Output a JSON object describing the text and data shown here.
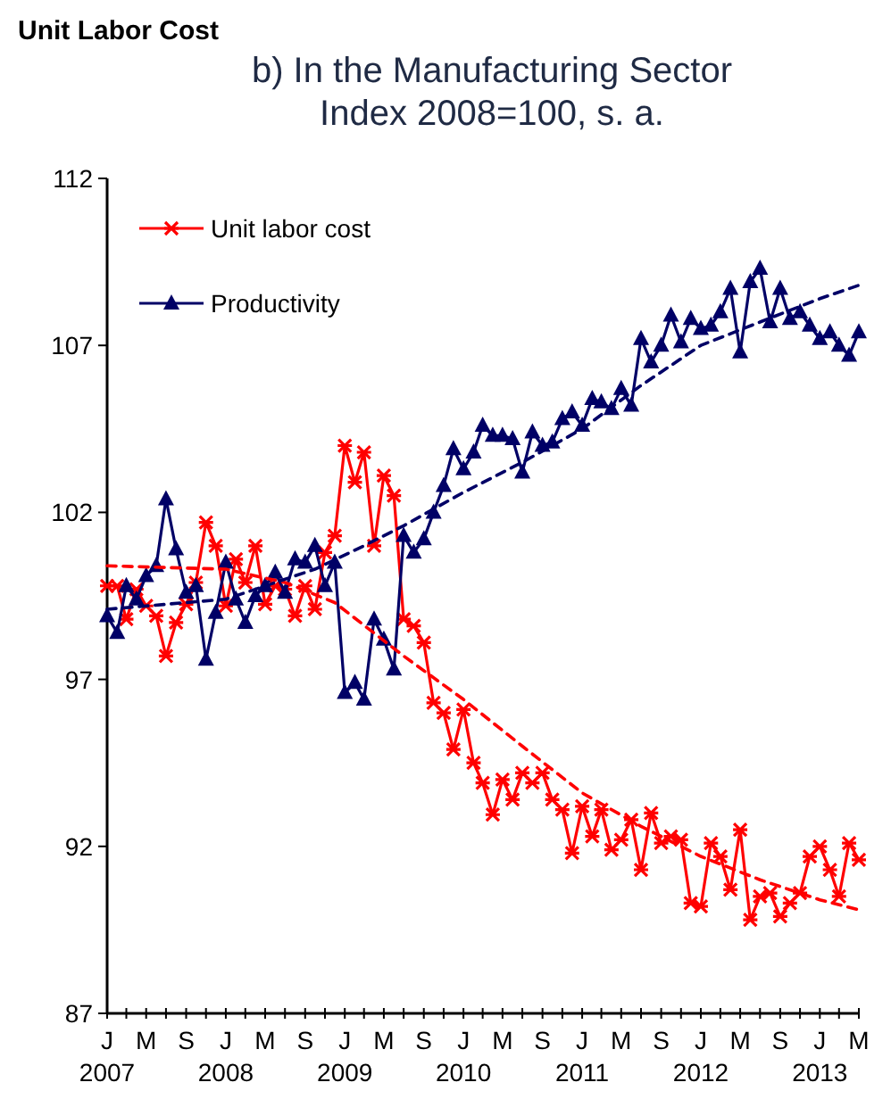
{
  "chart_data": {
    "type": "line",
    "title": "Unit Labor Cost",
    "subtitle": "b) In the Manufacturing Sector\nIndex 2008=100, s. a.",
    "xlim": [
      "2007-01",
      "2013-05"
    ],
    "x": [
      "2007-01",
      "2007-02",
      "2007-03",
      "2007-04",
      "2007-05",
      "2007-06",
      "2007-07",
      "2007-08",
      "2007-09",
      "2007-10",
      "2007-11",
      "2007-12",
      "2008-01",
      "2008-02",
      "2008-03",
      "2008-04",
      "2008-05",
      "2008-06",
      "2008-07",
      "2008-08",
      "2008-09",
      "2008-10",
      "2008-11",
      "2008-12",
      "2009-01",
      "2009-02",
      "2009-03",
      "2009-04",
      "2009-05",
      "2009-06",
      "2009-07",
      "2009-08",
      "2009-09",
      "2009-10",
      "2009-11",
      "2009-12",
      "2010-01",
      "2010-02",
      "2010-03",
      "2010-04",
      "2010-05",
      "2010-06",
      "2010-07",
      "2010-08",
      "2010-09",
      "2010-10",
      "2010-11",
      "2010-12",
      "2011-01",
      "2011-02",
      "2011-03",
      "2011-04",
      "2011-05",
      "2011-06",
      "2011-07",
      "2011-08",
      "2011-09",
      "2011-10",
      "2011-11",
      "2011-12",
      "2012-01",
      "2012-02",
      "2012-03",
      "2012-04",
      "2012-05",
      "2012-06",
      "2012-07",
      "2012-08",
      "2012-09",
      "2012-10",
      "2012-11",
      "2012-12",
      "2013-01",
      "2013-02",
      "2013-03",
      "2013-04",
      "2013-05"
    ],
    "xticks": [
      {
        "value": "2007-01",
        "label": "J\n2007"
      },
      {
        "value": "2007-03",
        "label": null
      },
      {
        "value": "2007-05",
        "label": "M"
      },
      {
        "value": "2007-07",
        "label": null
      },
      {
        "value": "2007-09",
        "label": "S"
      },
      {
        "value": "2007-11",
        "label": null
      },
      {
        "value": "2008-01",
        "label": "J\n2008"
      },
      {
        "value": "2008-03",
        "label": null
      },
      {
        "value": "2008-05",
        "label": "M"
      },
      {
        "value": "2008-07",
        "label": null
      },
      {
        "value": "2008-09",
        "label": "S"
      },
      {
        "value": "2008-11",
        "label": null
      },
      {
        "value": "2009-01",
        "label": "J\n2009"
      },
      {
        "value": "2009-03",
        "label": null
      },
      {
        "value": "2009-05",
        "label": "M"
      },
      {
        "value": "2009-07",
        "label": null
      },
      {
        "value": "2009-09",
        "label": "S"
      },
      {
        "value": "2009-11",
        "label": null
      },
      {
        "value": "2010-01",
        "label": "J\n2010"
      },
      {
        "value": "2010-03",
        "label": null
      },
      {
        "value": "2010-05",
        "label": "M"
      },
      {
        "value": "2010-07",
        "label": null
      },
      {
        "value": "2010-09",
        "label": "S"
      },
      {
        "value": "2010-11",
        "label": null
      },
      {
        "value": "2011-01",
        "label": "J\n2011"
      },
      {
        "value": "2011-03",
        "label": null
      },
      {
        "value": "2011-05",
        "label": "M"
      },
      {
        "value": "2011-07",
        "label": null
      },
      {
        "value": "2011-09",
        "label": "S"
      },
      {
        "value": "2011-11",
        "label": null
      },
      {
        "value": "2012-01",
        "label": "J\n2012"
      },
      {
        "value": "2012-03",
        "label": null
      },
      {
        "value": "2012-05",
        "label": "M"
      },
      {
        "value": "2012-07",
        "label": null
      },
      {
        "value": "2012-09",
        "label": "S"
      },
      {
        "value": "2012-11",
        "label": null
      },
      {
        "value": "2013-01",
        "label": "J\n2013"
      },
      {
        "value": "2013-03",
        "label": null
      },
      {
        "value": "2013-05",
        "label": "M"
      }
    ],
    "ylim": [
      87,
      112
    ],
    "yticks": [
      87,
      92,
      97,
      102,
      107,
      112
    ],
    "grid": false,
    "legend": "top left",
    "series": [
      {
        "name": "Unit labor cost",
        "color": "#ff0000",
        "marker": "cross",
        "line_style": "solid",
        "values": [
          99.8,
          99.8,
          98.8,
          99.7,
          99.2,
          98.9,
          97.7,
          98.7,
          99.25,
          99.9,
          101.7,
          101.0,
          99.2,
          100.6,
          99.9,
          101.0,
          99.25,
          99.8,
          99.7,
          98.9,
          99.8,
          99.1,
          100.8,
          101.3,
          104.0,
          102.9,
          103.8,
          101.0,
          103.1,
          102.5,
          98.8,
          98.6,
          98.1,
          96.3,
          96.0,
          94.9,
          96.1,
          94.5,
          93.9,
          92.95,
          94.0,
          93.4,
          94.2,
          93.9,
          94.2,
          93.4,
          93.1,
          91.8,
          93.2,
          92.3,
          93.1,
          91.9,
          92.2,
          92.8,
          91.3,
          93.0,
          92.1,
          92.3,
          92.2,
          90.3,
          90.2,
          92.1,
          91.7,
          90.7,
          92.5,
          89.8,
          90.5,
          90.6,
          89.9,
          90.3,
          90.6,
          91.7,
          92.0,
          91.3,
          90.5,
          92.1,
          91.6
        ]
      },
      {
        "name": "Productivity",
        "color": "#000066",
        "marker": "triangle",
        "line_style": "solid",
        "values": [
          98.9,
          98.4,
          99.8,
          99.4,
          100.1,
          100.4,
          102.4,
          100.9,
          99.6,
          99.8,
          97.6,
          99.0,
          100.5,
          99.4,
          98.7,
          99.5,
          99.8,
          100.2,
          99.6,
          100.6,
          100.5,
          101.0,
          99.8,
          100.5,
          96.6,
          96.9,
          96.4,
          98.8,
          98.2,
          97.3,
          101.3,
          100.8,
          101.2,
          102.0,
          102.8,
          103.9,
          103.3,
          103.8,
          104.6,
          104.3,
          104.3,
          104.2,
          103.2,
          104.4,
          104.0,
          104.1,
          104.8,
          105.0,
          104.6,
          105.4,
          105.3,
          105.1,
          105.7,
          105.2,
          107.2,
          106.5,
          107.0,
          107.9,
          107.1,
          107.8,
          107.5,
          107.6,
          108.0,
          108.7,
          106.8,
          108.9,
          109.3,
          107.7,
          108.7,
          107.8,
          108.0,
          107.6,
          107.2,
          107.4,
          107.0,
          106.7,
          107.4
        ]
      },
      {
        "type": "line",
        "color": "#ff0000",
        "marker": "none",
        "line_style": "dashed",
        "x": [
          "2007-01",
          "2008-01",
          "2008-07",
          "2008-12",
          "2009-07",
          "2010-01",
          "2010-07",
          "2011-01",
          "2011-07",
          "2012-01",
          "2012-07",
          "2013-01",
          "2013-05"
        ],
        "values": [
          100.4,
          100.3,
          99.9,
          99.3,
          97.7,
          96.4,
          95.0,
          93.6,
          92.6,
          91.7,
          91.0,
          90.4,
          90.1
        ]
      },
      {
        "type": "line",
        "color": "#000066",
        "marker": "none",
        "line_style": "dashed",
        "x": [
          "2007-01",
          "2008-01",
          "2008-10",
          "2009-03",
          "2009-07",
          "2010-01",
          "2010-07",
          "2011-01",
          "2011-07",
          "2012-01",
          "2012-07",
          "2013-01",
          "2013-05"
        ],
        "values": [
          99.1,
          99.4,
          100.3,
          101.0,
          101.6,
          102.6,
          103.5,
          104.5,
          105.8,
          107.0,
          107.7,
          108.4,
          108.8
        ]
      }
    ]
  }
}
